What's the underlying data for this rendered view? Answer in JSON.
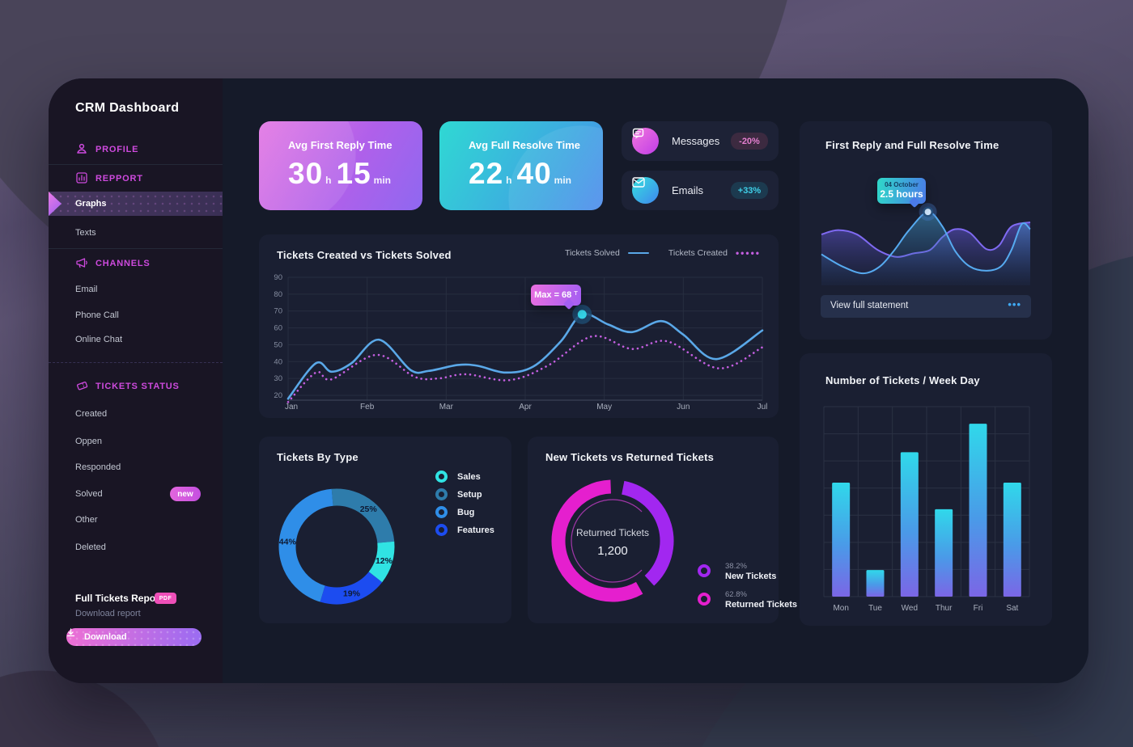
{
  "sidebar": {
    "title": "CRM Dashboard",
    "profile_label": "PROFILE",
    "repport_label": "REPPORT",
    "graphs_label": "Graphs",
    "texts_label": "Texts",
    "channels_label": "CHANNELS",
    "email_label": "Email",
    "phone_label": "Phone Call",
    "chat_label": "Online Chat",
    "tickets_status_label": "TICKETS STATUS",
    "created_label": "Created",
    "oppen_label": "Oppen",
    "responded_label": "Responded",
    "solved_label": "Solved",
    "solved_badge": "new",
    "other_label": "Other",
    "deleted_label": "Deleted",
    "report_title": "Full Tickets Report",
    "report_badge": "PDF",
    "report_subtitle": "Download report",
    "download_button": "Download"
  },
  "stat_cards": {
    "reply": {
      "title": "Avg First Reply Time",
      "hours": "30",
      "hours_unit": "h",
      "minutes": "15",
      "minutes_unit": "min"
    },
    "resolve": {
      "title": "Avg Full Resolve Time",
      "hours": "22",
      "hours_unit": "h",
      "minutes": "40",
      "minutes_unit": "min"
    }
  },
  "kpis": {
    "messages": {
      "label": "Messages",
      "delta": "-20%"
    },
    "emails": {
      "label": "Emails",
      "delta": "+33%"
    }
  },
  "reply_resolve_card": {
    "title": "First Reply and Full Resolve Time",
    "tooltip_date": "04 October",
    "tooltip_value": "2.5 hours",
    "footer": "View full statement",
    "footer_menu": "•••"
  },
  "line_card": {
    "title": "Tickets Created vs Tickets Solved",
    "legend_solved": "Tickets Solved",
    "legend_created": "Tickets Created",
    "tooltip_label": "Max = 68",
    "tooltip_unit": "T"
  },
  "type_card": {
    "title": "Tickets By Type"
  },
  "returned_card": {
    "title": "New Tickets vs Returned Tickets",
    "center_label": "Returned Tickets",
    "center_value": "1,200",
    "legend": [
      {
        "pct": "38.2%",
        "label": "New Tickets",
        "color": "#a227f0"
      },
      {
        "pct": "62.8%",
        "label": "Returned Tickets",
        "color": "#e51fce"
      }
    ]
  },
  "weekday_card": {
    "title": "Number of Tickets / Week Day"
  },
  "colors": {
    "accent_pink": "#ce4ade",
    "solved_line": "#5aa8e8",
    "created_line": "#c45fe0",
    "bar_top": "#30d8ea",
    "bar_bottom": "#7b66e6"
  },
  "chart_data": {
    "first_reply_resolve_area": {
      "type": "area",
      "title": "First Reply and Full Resolve Time",
      "series": [
        {
          "name": "Full Resolve",
          "color": "#7f6af2",
          "points": [
            [
              0,
              42
            ],
            [
              8,
              37
            ],
            [
              17,
              42
            ],
            [
              27,
              60
            ],
            [
              36,
              68
            ],
            [
              44,
              64
            ],
            [
              52,
              60
            ],
            [
              58,
              45
            ],
            [
              64,
              36
            ],
            [
              71,
              40
            ],
            [
              79,
              59
            ],
            [
              85,
              55
            ],
            [
              91,
              33
            ],
            [
              100,
              28
            ]
          ]
        },
        {
          "name": "First Reply",
          "color": "#56aaf0",
          "points": [
            [
              0,
              65
            ],
            [
              10,
              79
            ],
            [
              20,
              87
            ],
            [
              28,
              79
            ],
            [
              35,
              60
            ],
            [
              42,
              37
            ],
            [
              51,
              16
            ],
            [
              58,
              33
            ],
            [
              64,
              61
            ],
            [
              71,
              79
            ],
            [
              79,
              84
            ],
            [
              86,
              79
            ],
            [
              91,
              60
            ],
            [
              96,
              30
            ],
            [
              100,
              36
            ]
          ]
        }
      ],
      "marker": {
        "x": 51,
        "y": 16
      },
      "tooltip": {
        "date": "04 October",
        "value": "2.5 hours"
      }
    },
    "tickets_created_vs_solved": {
      "type": "line",
      "title": "Tickets Created vs Tickets Solved",
      "x_labels": [
        "Jan",
        "Feb",
        "Mar",
        "Apr",
        "May",
        "Jun",
        "Jul"
      ],
      "y_ticks": [
        90,
        80,
        70,
        60,
        50,
        40,
        30,
        20
      ],
      "ylim": [
        20,
        90
      ],
      "series": [
        {
          "name": "Tickets Solved",
          "style": "solid",
          "color": "#5aa8e8",
          "values": [
            [
              0,
              18
            ],
            [
              0.35,
              39
            ],
            [
              0.55,
              34
            ],
            [
              0.8,
              39
            ],
            [
              1.15,
              53
            ],
            [
              1.55,
              35
            ],
            [
              1.78,
              34.5
            ],
            [
              2.15,
              38
            ],
            [
              2.4,
              37.5
            ],
            [
              2.75,
              33.5
            ],
            [
              3.1,
              37
            ],
            [
              3.45,
              52
            ],
            [
              3.72,
              68
            ],
            [
              4.05,
              62
            ],
            [
              4.35,
              57.5
            ],
            [
              4.72,
              64
            ],
            [
              5.0,
              56
            ],
            [
              5.42,
              41.5
            ],
            [
              6,
              58.5
            ]
          ]
        },
        {
          "name": "Tickets Created",
          "style": "dotted",
          "color": "#c45fe0",
          "values": [
            [
              0,
              16
            ],
            [
              0.35,
              33.5
            ],
            [
              0.55,
              29.5
            ],
            [
              1.12,
              44
            ],
            [
              1.6,
              31
            ],
            [
              1.9,
              30
            ],
            [
              2.25,
              32.5
            ],
            [
              2.8,
              29
            ],
            [
              3.3,
              38
            ],
            [
              3.85,
              55
            ],
            [
              4.35,
              47.5
            ],
            [
              4.8,
              52
            ],
            [
              5.45,
              36
            ],
            [
              6,
              48.5
            ]
          ]
        }
      ],
      "max_point": {
        "x": 3.72,
        "y": 68,
        "label": "Max = 68",
        "unit": "T"
      }
    },
    "tickets_by_type": {
      "type": "pie",
      "title": "Tickets By Type",
      "start_angle": -5,
      "slices": [
        {
          "label": "Setup",
          "value": 25,
          "color": "#2e7cab"
        },
        {
          "label": "Sales",
          "value": 12,
          "color": "#30e3e3"
        },
        {
          "label": "Features",
          "value": 19,
          "color": "#1c4cf0"
        },
        {
          "label": "Bug",
          "value": 44,
          "color": "#2f8ee8"
        }
      ],
      "legend": [
        {
          "label": "Sales",
          "color": "#30e3e3"
        },
        {
          "label": "Setup",
          "color": "#2e7cab"
        },
        {
          "label": "Bug",
          "color": "#2f8ee8"
        },
        {
          "label": "Features",
          "color": "#1c4cf0"
        }
      ]
    },
    "new_vs_returned": {
      "type": "pie",
      "title": "New Tickets vs Returned Tickets",
      "center_label": "Returned Tickets",
      "center_value": "1,200",
      "slices": [
        {
          "label": "New Tickets",
          "value": 38.2,
          "color": "#a227f0"
        },
        {
          "label": "Returned Tickets",
          "value": 62.8,
          "color": "#e51fce"
        }
      ]
    },
    "tickets_per_weekday": {
      "type": "bar",
      "title": "Number of Tickets / Week Day",
      "categories": [
        "Mon",
        "Tue",
        "Wed",
        "Thur",
        "Fri",
        "Sat"
      ],
      "values": [
        60,
        14,
        76,
        46,
        91,
        60
      ],
      "ylim": [
        0,
        100
      ],
      "grid": true
    }
  }
}
